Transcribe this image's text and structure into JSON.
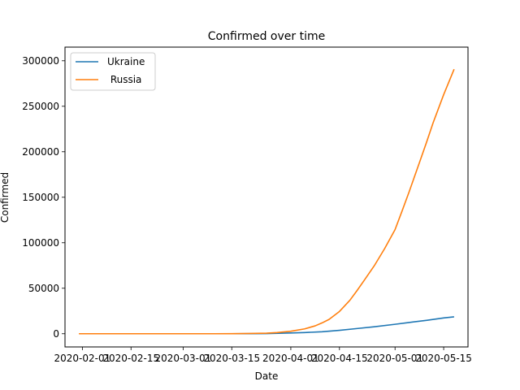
{
  "chart_data": {
    "type": "line",
    "title": "Confirmed over time",
    "xlabel": "Date",
    "ylabel": "Confirmed",
    "xlim": [
      "2020-01-27",
      "2020-05-22"
    ],
    "ylim": [
      -14500,
      315000
    ],
    "x_ticks": [
      "2020-02-01",
      "2020-02-15",
      "2020-03-01",
      "2020-03-15",
      "2020-04-01",
      "2020-04-15",
      "2020-05-01",
      "2020-05-15"
    ],
    "y_ticks": [
      0,
      50000,
      100000,
      150000,
      200000,
      250000,
      300000
    ],
    "y_tick_labels": [
      "0",
      "50000",
      "100000",
      "150000",
      "200000",
      "250000",
      "300000"
    ],
    "legend_position": "upper-left",
    "grid": false,
    "series": [
      {
        "name": "Ukraine",
        "color": "#1f77b4",
        "points": [
          [
            "2020-03-03",
            1
          ],
          [
            "2020-03-15",
            3
          ],
          [
            "2020-03-20",
            26
          ],
          [
            "2020-03-25",
            156
          ],
          [
            "2020-04-01",
            804
          ],
          [
            "2020-04-05",
            1319
          ],
          [
            "2020-04-10",
            2203
          ],
          [
            "2020-04-15",
            3764
          ],
          [
            "2020-04-20",
            5710
          ],
          [
            "2020-04-25",
            7647
          ],
          [
            "2020-05-01",
            10406
          ],
          [
            "2020-05-05",
            12331
          ],
          [
            "2020-05-10",
            14710
          ],
          [
            "2020-05-15",
            17330
          ],
          [
            "2020-05-18",
            18616
          ]
        ]
      },
      {
        "name": " Russia",
        "color": "#ff7f0e",
        "points": [
          [
            "2020-01-31",
            2
          ],
          [
            "2020-03-01",
            2
          ],
          [
            "2020-03-10",
            20
          ],
          [
            "2020-03-15",
            63
          ],
          [
            "2020-03-20",
            253
          ],
          [
            "2020-03-25",
            658
          ],
          [
            "2020-03-28",
            1264
          ],
          [
            "2020-04-01",
            2777
          ],
          [
            "2020-04-05",
            5389
          ],
          [
            "2020-04-08",
            8672
          ],
          [
            "2020-04-10",
            11917
          ],
          [
            "2020-04-12",
            15770
          ],
          [
            "2020-04-15",
            24490
          ],
          [
            "2020-04-18",
            36793
          ],
          [
            "2020-04-20",
            47121
          ],
          [
            "2020-04-22",
            57999
          ],
          [
            "2020-04-25",
            74588
          ],
          [
            "2020-04-28",
            93558
          ],
          [
            "2020-05-01",
            114431
          ],
          [
            "2020-05-03",
            134687
          ],
          [
            "2020-05-05",
            155370
          ],
          [
            "2020-05-08",
            187859
          ],
          [
            "2020-05-10",
            209688
          ],
          [
            "2020-05-12",
            232243
          ],
          [
            "2020-05-15",
            262843
          ],
          [
            "2020-05-18",
            290678
          ]
        ]
      }
    ]
  }
}
